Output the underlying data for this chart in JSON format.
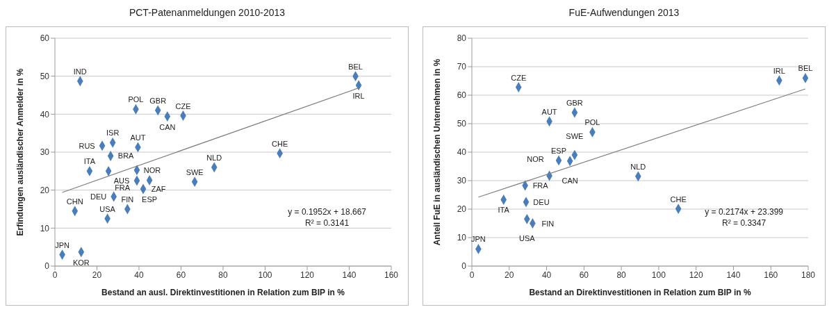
{
  "chart_data": [
    {
      "type": "scatter",
      "title": "PCT-Patenanmeldungen 2010-2013",
      "xlabel": "Bestand an ausl. Direktinvestitionen in Relation zum BIP in %",
      "ylabel": "Erfindungen ausländischer Anmelder in %",
      "xlim": [
        0,
        160
      ],
      "xticks": [
        0,
        20,
        40,
        60,
        80,
        100,
        120,
        140,
        160
      ],
      "ylim": [
        0,
        60
      ],
      "yticks": [
        0,
        10,
        20,
        30,
        40,
        50,
        60
      ],
      "grid": "y",
      "marker": "diamond",
      "legend": false,
      "annotations": [
        "y = 0.1952x + 18.667",
        "R² = 0.3141"
      ],
      "series": [
        {
          "type": "scatter",
          "color": "#4a7ebb",
          "x": [
            3.5,
            12.5,
            9.5,
            12,
            16.5,
            22.5,
            27.5,
            26.5,
            25.5,
            25,
            28,
            34.5,
            38.5,
            39.5,
            39,
            39,
            42,
            45,
            49,
            53.5,
            61,
            66.5,
            75.8,
            107,
            143,
            144.5
          ],
          "values": [
            3,
            3.7,
            14.5,
            48.7,
            25,
            31.7,
            32.5,
            29,
            25,
            12.5,
            18.3,
            15,
            41.3,
            31.3,
            25.3,
            22.5,
            20.3,
            22.6,
            41,
            39.4,
            39.6,
            22.2,
            26,
            29.7,
            50,
            47.6
          ],
          "value_labels": [
            "JPN",
            "KOR",
            "CHN",
            "IND",
            "ITA",
            "RUS",
            "ISR",
            "BRA",
            "FRA",
            "USA",
            "DEU",
            "FIN",
            "POL",
            "AUT",
            "NOR",
            "AUS",
            "ZAF",
            "ESP",
            "GBR",
            "CAN",
            "CZE",
            "SWE",
            "NLD",
            "CHE",
            "BEL",
            "IRL"
          ]
        },
        {
          "type": "line",
          "color": "#7f7f7f",
          "marker": "none",
          "x": [
            3.5,
            144.5
          ],
          "values": [
            19.4,
            46.9
          ]
        }
      ]
    },
    {
      "type": "scatter",
      "title": "FuE-Aufwendungen 2013",
      "xlabel": "Bestand an Direktinvestitionen  in Relation zum BIP in %",
      "ylabel": "Anteil FuE in ausländischen Unternehmen in %",
      "xlim": [
        0,
        180
      ],
      "xticks": [
        0,
        20,
        40,
        60,
        80,
        100,
        120,
        140,
        160,
        180
      ],
      "ylim": [
        0,
        80
      ],
      "yticks": [
        0,
        10,
        20,
        30,
        40,
        50,
        60,
        70,
        80
      ],
      "grid": "y",
      "marker": "diamond",
      "legend": false,
      "annotations": [
        "y = 0.2174x + 23.399",
        "R² = 0.3347"
      ],
      "series": [
        {
          "type": "scatter",
          "color": "#4a7ebb",
          "x": [
            3.5,
            17,
            25,
            28.5,
            29,
            29.5,
            32.5,
            41.5,
            41.5,
            46.5,
            52.5,
            55,
            55,
            64.5,
            89,
            110.5,
            164.5,
            178.5
          ],
          "values": [
            6,
            23.3,
            62.8,
            28.3,
            22.5,
            16.5,
            15,
            50.8,
            31.7,
            37.1,
            36.9,
            39,
            53.9,
            47,
            31.5,
            20.1,
            65.2,
            66
          ],
          "value_labels": [
            "JPN",
            "ITA",
            "CZE",
            "FRA",
            "DEU",
            "USA",
            "FIN",
            "AUT",
            "NOR",
            "ESP",
            "CAN",
            "SWE",
            "GBR",
            "POL",
            "NLD",
            "CHE",
            "IRL",
            "BEL"
          ]
        },
        {
          "type": "line",
          "color": "#7f7f7f",
          "marker": "none",
          "x": [
            3.5,
            178.5
          ],
          "values": [
            24.2,
            62.2
          ]
        }
      ]
    }
  ]
}
